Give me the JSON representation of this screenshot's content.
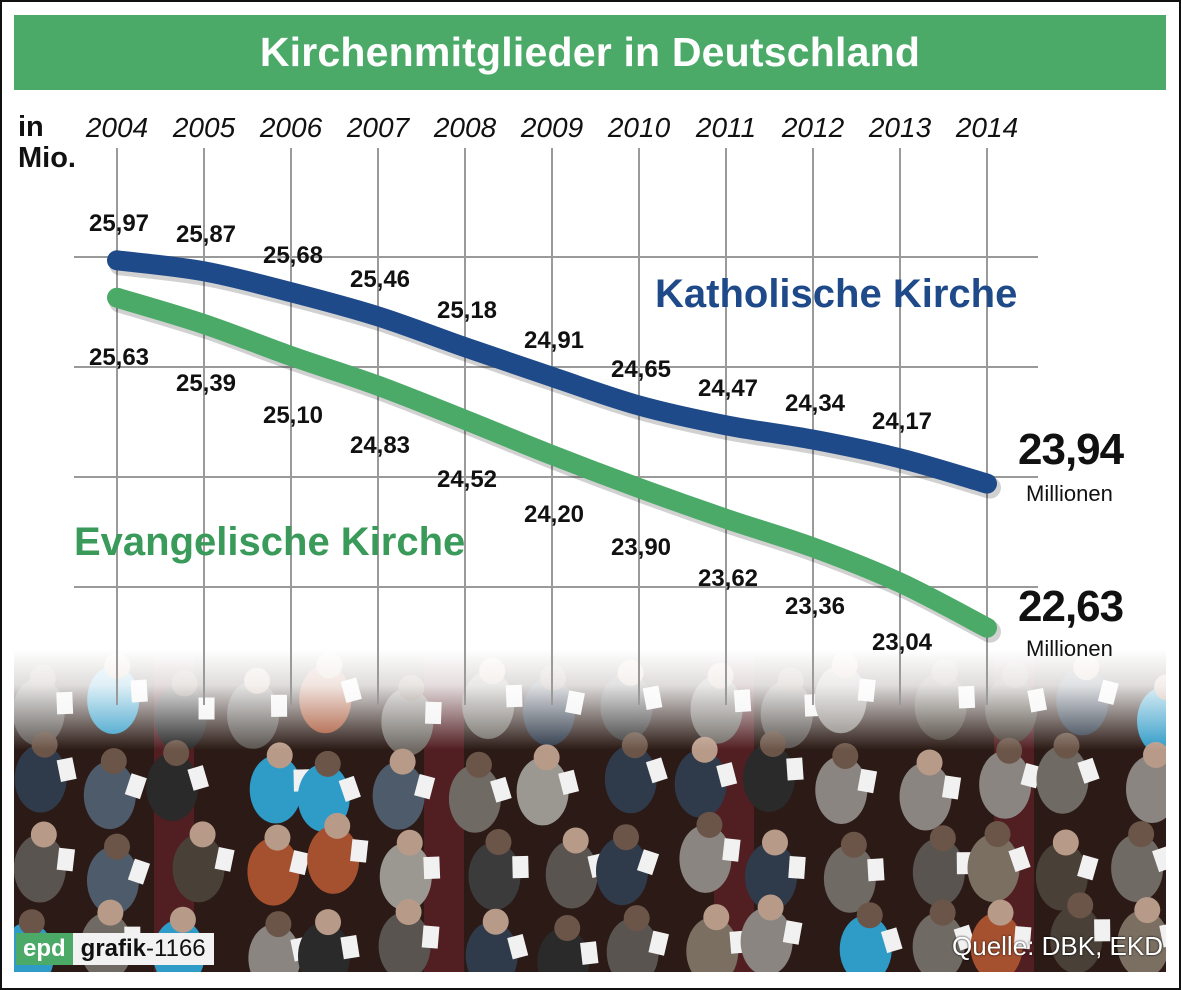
{
  "title": "Kirchenmitglieder in Deutschland",
  "unit_label_line1": "in",
  "unit_label_line2": "Mio.",
  "chart_data": {
    "type": "line",
    "title": "Kirchenmitglieder in Deutschland",
    "xlabel": "",
    "ylabel": "in Mio.",
    "x": [
      "2004",
      "2005",
      "2006",
      "2007",
      "2008",
      "2009",
      "2010",
      "2011",
      "2012",
      "2013",
      "2014"
    ],
    "series": [
      {
        "name": "Katholische Kirche",
        "color": "#1f4a8a",
        "values": [
          25.97,
          25.87,
          25.68,
          25.46,
          25.18,
          24.91,
          24.65,
          24.47,
          24.34,
          24.17,
          23.94
        ],
        "labels": [
          "25,97",
          "25,87",
          "25,68",
          "25,46",
          "25,18",
          "24,91",
          "24,65",
          "24,47",
          "24,34",
          "24,17",
          "23,94"
        ]
      },
      {
        "name": "Evangelische Kirche",
        "color": "#4caa69",
        "values": [
          25.63,
          25.39,
          25.1,
          24.83,
          24.52,
          24.2,
          23.9,
          23.62,
          23.36,
          23.04,
          22.63
        ],
        "labels": [
          "25,63",
          "25,39",
          "25,10",
          "24,83",
          "24,52",
          "24,20",
          "23,90",
          "23,62",
          "23,36",
          "23,04",
          "22,63"
        ]
      }
    ],
    "ylim": [
      22.5,
      26.2
    ],
    "grid": true,
    "gridlines_y": [
      26,
      25,
      24,
      23
    ],
    "legend_position": "inline labels",
    "annotations": [
      {
        "text": "23,94",
        "sub": "Millionen",
        "series": "Katholische Kirche"
      },
      {
        "text": "22,63",
        "sub": "Millionen",
        "series": "Evangelische Kirche"
      }
    ]
  },
  "series_labels": {
    "catholic": "Katholische Kirche",
    "protestant": "Evangelische Kirche"
  },
  "end_values": {
    "catholic": {
      "value": "23,94",
      "unit": "Millionen"
    },
    "protestant": {
      "value": "22,63",
      "unit": "Millionen"
    }
  },
  "footer": {
    "brand": "epd",
    "graphic_word": "grafik",
    "graphic_id": "-1166",
    "source": "Quelle: DBK, EKD"
  },
  "colors": {
    "green": "#4caa69",
    "blue": "#1f4a8a",
    "grid": "#9a9a9a"
  }
}
